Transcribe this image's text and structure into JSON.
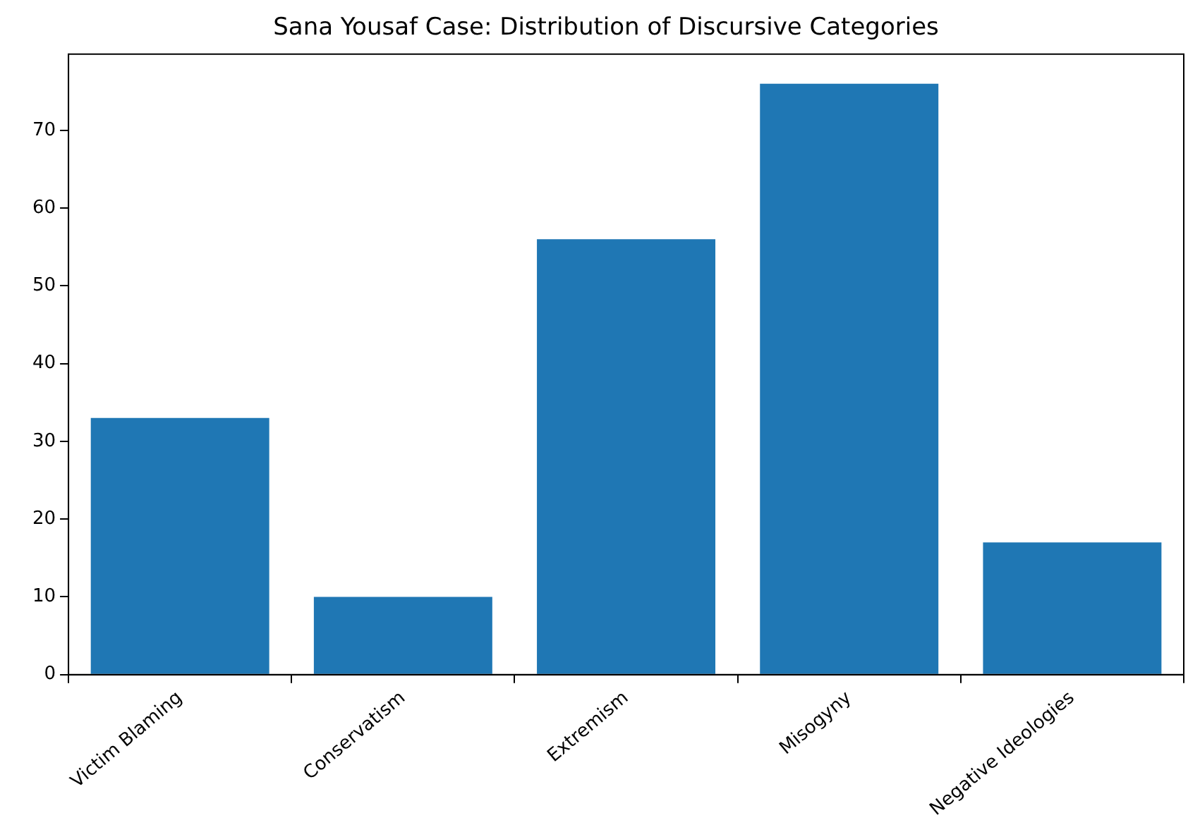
{
  "chart_data": {
    "type": "bar",
    "title": "Sana Yousaf Case: Distribution of Discursive Categories",
    "categories": [
      "Victim Blaming",
      "Conservatism",
      "Extremism",
      "Misogyny",
      "Negative Ideologies"
    ],
    "values": [
      33,
      10,
      56,
      76,
      17
    ],
    "color": "#1f77b4",
    "ylim": [
      0,
      79.8
    ],
    "yticks": [
      0,
      10,
      20,
      30,
      40,
      50,
      60,
      70
    ],
    "grid": false,
    "legend": false
  }
}
